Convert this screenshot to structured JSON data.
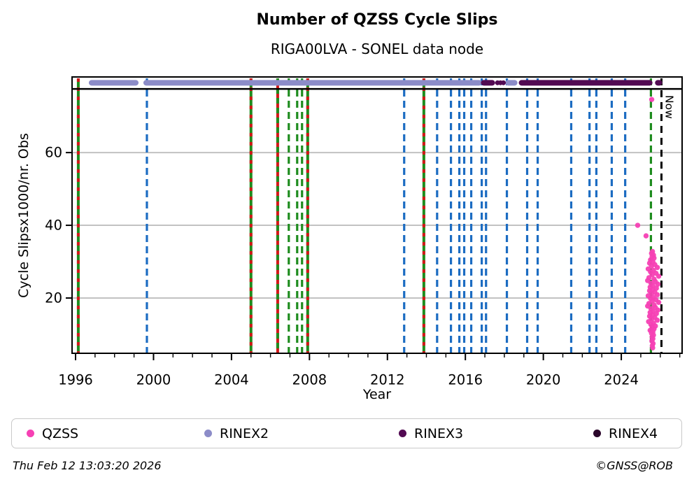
{
  "title": "Number of QZSS Cycle Slips",
  "subtitle": "RIGA00LVA - SONEL data node",
  "footer": {
    "timestamp": "Thu Feb 12 13:03:20 2026",
    "credit": "©GNSS@ROB"
  },
  "legend": [
    {
      "label": "QZSS",
      "color": "#f640b4"
    },
    {
      "label": "RINEX2",
      "color": "#8c8cc8"
    },
    {
      "label": "RINEX3",
      "color": "#520a52"
    },
    {
      "label": "RINEX4",
      "color": "#2a052a"
    }
  ],
  "chart_data": {
    "type": "scatter",
    "title": "Number of QZSS Cycle Slips",
    "subtitle": "RIGA00LVA - SONEL data node",
    "xlabel": "Year",
    "ylabel": "Cycle Slipsx1000/nr. Obs",
    "xlim": [
      1995.82,
      2027.12
    ],
    "ylim": [
      4.8,
      80.8
    ],
    "xticks": [
      1996,
      2000,
      2004,
      2008,
      2012,
      2016,
      2020,
      2024
    ],
    "yticks": [
      20,
      40,
      60
    ],
    "grid": "horizontal",
    "legend_position": "bottom",
    "colors": {
      "qzss": "#f640b4",
      "rinex2": "#8c8cc8",
      "rinex3": "#520a52",
      "rinex4": "#2a052a",
      "green": "#1e8c1e",
      "red": "#d21717",
      "blue": "#1c6cc2",
      "grid": "#c2c2c2",
      "now": "#000000"
    },
    "now_line": {
      "year": 2026.06,
      "label": "Now",
      "style": "dashed"
    },
    "availability": {
      "marker_value": 79.2,
      "baseline_value": 77.5,
      "rinex2_segments": [
        [
          1996.68,
          1999.23
        ],
        [
          1999.48,
          2016.85
        ],
        [
          2018.05,
          2018.67
        ]
      ],
      "rinex3_segments": [
        [
          2016.8,
          2017.52
        ],
        [
          2018.74,
          2025.6
        ],
        [
          2025.73,
          2026.1
        ]
      ],
      "rinex3_dots": [
        2017.65,
        2017.8,
        2017.95
      ],
      "rinex4_segments": []
    },
    "event_lines": [
      {
        "year": 1996.14,
        "type": "green_red"
      },
      {
        "year": 1999.66,
        "type": "blue"
      },
      {
        "year": 2005.0,
        "type": "green_red"
      },
      {
        "year": 2006.37,
        "type": "red_green"
      },
      {
        "year": 2006.94,
        "type": "green"
      },
      {
        "year": 2007.37,
        "type": "green"
      },
      {
        "year": 2007.62,
        "type": "green"
      },
      {
        "year": 2007.91,
        "type": "green_red"
      },
      {
        "year": 2012.86,
        "type": "blue"
      },
      {
        "year": 2013.87,
        "type": "green_red"
      },
      {
        "year": 2014.55,
        "type": "blue"
      },
      {
        "year": 2015.26,
        "type": "blue"
      },
      {
        "year": 2015.69,
        "type": "blue"
      },
      {
        "year": 2015.94,
        "type": "blue"
      },
      {
        "year": 2016.3,
        "type": "blue"
      },
      {
        "year": 2016.84,
        "type": "blue"
      },
      {
        "year": 2017.06,
        "type": "blue"
      },
      {
        "year": 2018.13,
        "type": "blue"
      },
      {
        "year": 2019.17,
        "type": "blue"
      },
      {
        "year": 2019.71,
        "type": "blue"
      },
      {
        "year": 2021.43,
        "type": "blue"
      },
      {
        "year": 2022.37,
        "type": "blue"
      },
      {
        "year": 2022.72,
        "type": "blue"
      },
      {
        "year": 2023.51,
        "type": "blue"
      },
      {
        "year": 2024.2,
        "type": "blue"
      },
      {
        "year": 2025.52,
        "type": "green"
      }
    ],
    "qzss_points": [
      [
        2025.56,
        74.6
      ],
      [
        2024.84,
        40.0
      ],
      [
        2025.27,
        37.1
      ],
      [
        2025.6,
        32.8
      ],
      [
        2025.55,
        32.3
      ],
      [
        2025.65,
        31.8
      ],
      [
        2025.58,
        31.4
      ],
      [
        2025.68,
        31.0
      ],
      [
        2025.5,
        30.5
      ],
      [
        2025.62,
        30.0
      ],
      [
        2025.45,
        29.6
      ],
      [
        2025.72,
        29.2
      ],
      [
        2025.55,
        28.8
      ],
      [
        2025.85,
        28.4
      ],
      [
        2025.38,
        28.0
      ],
      [
        2025.65,
        27.6
      ],
      [
        2025.5,
        27.2
      ],
      [
        2025.78,
        26.8
      ],
      [
        2025.58,
        26.4
      ],
      [
        2025.92,
        26.0
      ],
      [
        2025.42,
        25.6
      ],
      [
        2025.68,
        25.2
      ],
      [
        2025.35,
        24.8
      ],
      [
        2025.75,
        24.5
      ],
      [
        2025.52,
        24.1
      ],
      [
        2025.88,
        23.8
      ],
      [
        2025.62,
        23.4
      ],
      [
        2025.48,
        23.0
      ],
      [
        2025.8,
        22.7
      ],
      [
        2025.6,
        22.3
      ],
      [
        2025.45,
        22.0
      ],
      [
        2025.72,
        21.6
      ],
      [
        2025.55,
        21.3
      ],
      [
        2025.85,
        20.9
      ],
      [
        2025.38,
        20.6
      ],
      [
        2025.65,
        20.2
      ],
      [
        2025.5,
        19.9
      ],
      [
        2025.78,
        19.5
      ],
      [
        2025.58,
        19.2
      ],
      [
        2025.92,
        18.8
      ],
      [
        2025.42,
        18.5
      ],
      [
        2025.68,
        18.1
      ],
      [
        2025.35,
        17.8
      ],
      [
        2025.75,
        17.4
      ],
      [
        2025.52,
        17.1
      ],
      [
        2025.88,
        16.7
      ],
      [
        2025.62,
        16.4
      ],
      [
        2025.48,
        16.0
      ],
      [
        2025.8,
        15.7
      ],
      [
        2025.6,
        15.3
      ],
      [
        2025.45,
        15.0
      ],
      [
        2025.72,
        14.6
      ],
      [
        2025.55,
        14.2
      ],
      [
        2025.85,
        13.9
      ],
      [
        2025.4,
        13.5
      ],
      [
        2025.65,
        13.1
      ],
      [
        2025.52,
        12.7
      ],
      [
        2025.75,
        12.3
      ],
      [
        2025.58,
        11.9
      ],
      [
        2025.68,
        11.5
      ],
      [
        2025.48,
        11.1
      ],
      [
        2025.62,
        10.7
      ],
      [
        2025.55,
        10.3
      ],
      [
        2025.65,
        9.8
      ],
      [
        2025.58,
        9.3
      ],
      [
        2025.62,
        8.8
      ],
      [
        2025.57,
        8.2
      ],
      [
        2025.63,
        7.5
      ],
      [
        2025.59,
        6.9
      ],
      [
        2025.61,
        6.3
      ]
    ]
  }
}
